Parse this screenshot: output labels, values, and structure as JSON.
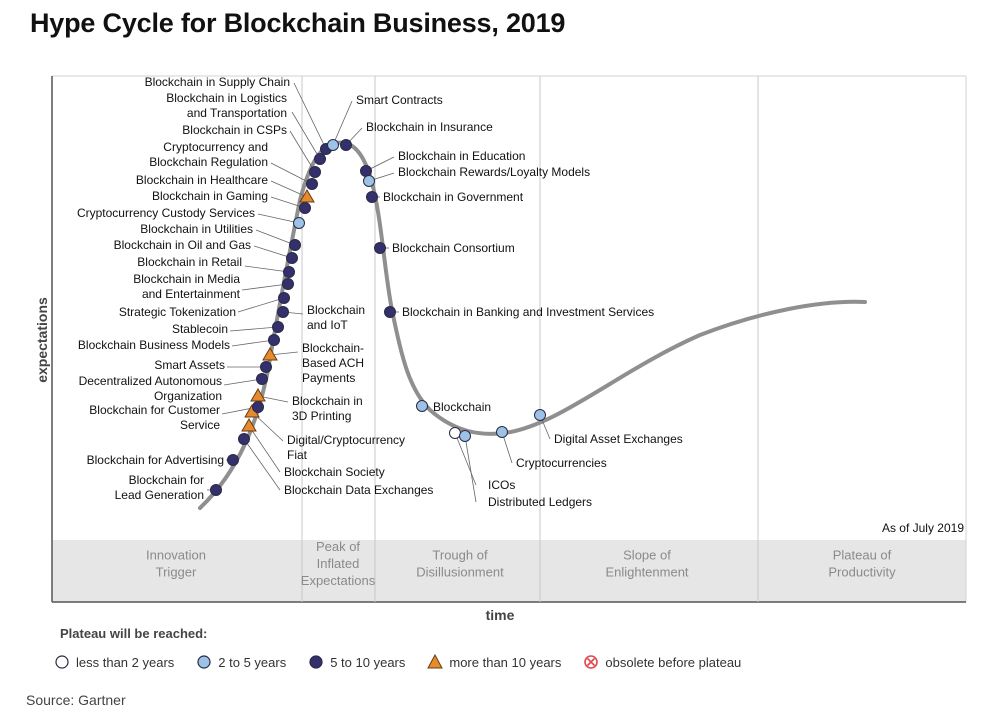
{
  "chart_data": {
    "type": "scatter",
    "title": "Hype Cycle for Blockchain Business, 2019",
    "ylabel": "expectations",
    "xlabel": "time",
    "as_of": "As of July 2019",
    "source": "Source: Gartner",
    "phases": [
      [
        "Innovation",
        "Trigger"
      ],
      [
        "Peak of",
        "Inflated",
        "Expectations"
      ],
      [
        "Trough of",
        "Disillusionment"
      ],
      [
        "Slope of",
        "Enlightenment"
      ],
      [
        "Plateau of",
        "Productivity"
      ]
    ],
    "legend_title": "Plateau will be reached:",
    "legend": [
      {
        "key": "lt2",
        "label": "less than 2 years",
        "marker": "circle",
        "color": "#ffffff"
      },
      {
        "key": "2to5",
        "label": "2 to 5 years",
        "marker": "circle",
        "color": "#9cc3e6"
      },
      {
        "key": "5to10",
        "label": "5 to 10 years",
        "marker": "circle",
        "color": "#33306b"
      },
      {
        "key": "gt10",
        "label": "more than 10 years",
        "marker": "triangle",
        "color": "#e58a2e"
      },
      {
        "key": "obsolete",
        "label": "obsolete before plateau",
        "marker": "crossed-circle",
        "color": "#e0484b"
      }
    ],
    "points": [
      {
        "name": [
          "Blockchain for",
          "Lead Generation"
        ],
        "category": "5to10"
      },
      {
        "name": [
          "Blockchain for Advertising"
        ],
        "category": "5to10"
      },
      {
        "name": [
          "Blockchain Data Exchanges"
        ],
        "category": "5to10"
      },
      {
        "name": [
          "Blockchain Society"
        ],
        "category": "gt10"
      },
      {
        "name": [
          "Digital/Cryptocurrency",
          "Fiat"
        ],
        "category": "gt10"
      },
      {
        "name": [
          "Blockchain for Customer",
          "Service"
        ],
        "category": "5to10"
      },
      {
        "name": [
          "Blockchain in",
          "3D Printing"
        ],
        "category": "gt10"
      },
      {
        "name": [
          "Decentralized Autonomous",
          "Organization"
        ],
        "category": "5to10"
      },
      {
        "name": [
          "Smart Assets"
        ],
        "category": "5to10"
      },
      {
        "name": [
          "Blockchain-",
          "Based ACH",
          "Payments"
        ],
        "category": "gt10"
      },
      {
        "name": [
          "Blockchain Business Models"
        ],
        "category": "5to10"
      },
      {
        "name": [
          "Stablecoin"
        ],
        "category": "5to10"
      },
      {
        "name": [
          "Blockchain",
          "and IoT"
        ],
        "category": "5to10"
      },
      {
        "name": [
          "Strategic Tokenization"
        ],
        "category": "5to10"
      },
      {
        "name": [
          "Blockchain in Media",
          "and Entertainment"
        ],
        "category": "5to10"
      },
      {
        "name": [
          "Blockchain in Retail"
        ],
        "category": "5to10"
      },
      {
        "name": [
          "Blockchain in Oil and Gas"
        ],
        "category": "5to10"
      },
      {
        "name": [
          "Blockchain in Utilities"
        ],
        "category": "5to10"
      },
      {
        "name": [
          "Cryptocurrency Custody Services"
        ],
        "category": "2to5"
      },
      {
        "name": [
          "Blockchain in Gaming"
        ],
        "category": "5to10"
      },
      {
        "name": [
          "Blockchain in Healthcare"
        ],
        "category": "gt10"
      },
      {
        "name": [
          "Cryptocurrency and",
          "Blockchain Regulation"
        ],
        "category": "5to10"
      },
      {
        "name": [
          "Blockchain in CSPs"
        ],
        "category": "5to10"
      },
      {
        "name": [
          "Blockchain in Logistics",
          "and Transportation"
        ],
        "category": "5to10"
      },
      {
        "name": [
          "Blockchain in Supply Chain"
        ],
        "category": "5to10"
      },
      {
        "name": [
          "Smart Contracts"
        ],
        "category": "2to5"
      },
      {
        "name": [
          "Blockchain in Insurance"
        ],
        "category": "5to10"
      },
      {
        "name": [
          "Blockchain in Education"
        ],
        "category": "5to10"
      },
      {
        "name": [
          "Blockchain Rewards/Loyalty Models"
        ],
        "category": "2to5"
      },
      {
        "name": [
          "Blockchain in Government"
        ],
        "category": "5to10"
      },
      {
        "name": [
          "Blockchain Consortium"
        ],
        "category": "5to10"
      },
      {
        "name": [
          "Blockchain in Banking and Investment Services"
        ],
        "category": "5to10"
      },
      {
        "name": [
          "Blockchain"
        ],
        "category": "2to5"
      },
      {
        "name": [
          "ICOs"
        ],
        "category": "lt2"
      },
      {
        "name": [
          "Distributed Ledgers"
        ],
        "category": "2to5"
      },
      {
        "name": [
          "Cryptocurrencies"
        ],
        "category": "2to5"
      },
      {
        "name": [
          "Digital Asset Exchanges"
        ],
        "category": "2to5"
      }
    ]
  }
}
